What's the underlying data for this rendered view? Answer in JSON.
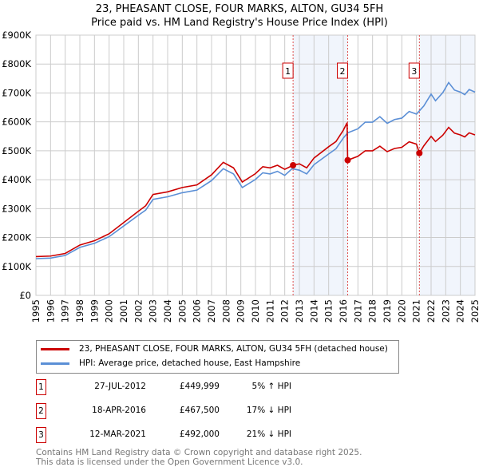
{
  "chart_data": {
    "type": "line",
    "title": "23, PHEASANT CLOSE, FOUR MARKS, ALTON, GU34 5FH",
    "subtitle": "Price paid vs. HM Land Registry's House Price Index (HPI)",
    "xlim": [
      1995,
      2025
    ],
    "ylim": [
      0,
      900000
    ],
    "x_ticks": [
      "1995",
      "1996",
      "1997",
      "1998",
      "1999",
      "2000",
      "2001",
      "2002",
      "2003",
      "2004",
      "2005",
      "2006",
      "2007",
      "2008",
      "2009",
      "2010",
      "2011",
      "2012",
      "2013",
      "2014",
      "2015",
      "2016",
      "2017",
      "2018",
      "2019",
      "2020",
      "2021",
      "2022",
      "2023",
      "2024",
      "2025"
    ],
    "y_ticks": [
      {
        "v": 0,
        "l": "£0"
      },
      {
        "v": 100000,
        "l": "£100K"
      },
      {
        "v": 200000,
        "l": "£200K"
      },
      {
        "v": 300000,
        "l": "£300K"
      },
      {
        "v": 400000,
        "l": "£400K"
      },
      {
        "v": 500000,
        "l": "£500K"
      },
      {
        "v": 600000,
        "l": "£600K"
      },
      {
        "v": 700000,
        "l": "£700K"
      },
      {
        "v": 800000,
        "l": "£800K"
      },
      {
        "v": 900000,
        "l": "£900K"
      }
    ],
    "grid": true,
    "series": [
      {
        "name": "23, PHEASANT CLOSE, FOUR MARKS, ALTON, GU34 5FH (detached house)",
        "color": "#cc0000",
        "points": [
          [
            1995,
            134
          ],
          [
            1996,
            136
          ],
          [
            1997,
            145
          ],
          [
            1998,
            174
          ],
          [
            1999,
            189
          ],
          [
            2000,
            213
          ],
          [
            2001,
            252
          ],
          [
            2002,
            291
          ],
          [
            2002.5,
            310
          ],
          [
            2003,
            349
          ],
          [
            2004,
            358
          ],
          [
            2005,
            373
          ],
          [
            2006,
            382
          ],
          [
            2007,
            417
          ],
          [
            2007.8,
            460
          ],
          [
            2008.5,
            441
          ],
          [
            2009.1,
            392
          ],
          [
            2010,
            421
          ],
          [
            2010.5,
            445
          ],
          [
            2011,
            441
          ],
          [
            2011.5,
            450
          ],
          [
            2012,
            436
          ],
          [
            2012.57,
            450
          ],
          [
            2013,
            455
          ],
          [
            2013.5,
            441
          ],
          [
            2014,
            475
          ],
          [
            2015,
            514
          ],
          [
            2015.5,
            532
          ],
          [
            2016,
            571
          ],
          [
            2016.26,
            597
          ],
          [
            2016.3,
            467.5
          ],
          [
            2017,
            481
          ],
          [
            2017.5,
            500
          ],
          [
            2018,
            500
          ],
          [
            2018.5,
            516
          ],
          [
            2019,
            497
          ],
          [
            2019.5,
            508
          ],
          [
            2020,
            512
          ],
          [
            2020.5,
            531
          ],
          [
            2021,
            523
          ],
          [
            2021.2,
            492
          ],
          [
            2021.5,
            517
          ],
          [
            2022,
            550
          ],
          [
            2022.3,
            532
          ],
          [
            2022.8,
            554
          ],
          [
            2023.2,
            581
          ],
          [
            2023.6,
            561
          ],
          [
            2024,
            555
          ],
          [
            2024.3,
            548
          ],
          [
            2024.6,
            562
          ],
          [
            2025,
            555
          ]
        ]
      },
      {
        "name": "HPI: Average price, detached house, East Hampshire",
        "color": "#5b8fd6",
        "points": [
          [
            1995,
            127
          ],
          [
            1996,
            129
          ],
          [
            1997,
            138
          ],
          [
            1998,
            166
          ],
          [
            1999,
            180
          ],
          [
            2000,
            203
          ],
          [
            2001,
            240
          ],
          [
            2002,
            277
          ],
          [
            2002.5,
            295
          ],
          [
            2003,
            332
          ],
          [
            2004,
            341
          ],
          [
            2005,
            355
          ],
          [
            2006,
            364
          ],
          [
            2007,
            397
          ],
          [
            2007.8,
            438
          ],
          [
            2008.5,
            420
          ],
          [
            2009.1,
            373
          ],
          [
            2010,
            401
          ],
          [
            2010.5,
            424
          ],
          [
            2011,
            420
          ],
          [
            2011.5,
            429
          ],
          [
            2012,
            415
          ],
          [
            2012.5,
            438
          ],
          [
            2013,
            433
          ],
          [
            2013.5,
            420
          ],
          [
            2014,
            452
          ],
          [
            2015,
            489
          ],
          [
            2015.5,
            507
          ],
          [
            2016,
            544
          ],
          [
            2016.3,
            562
          ],
          [
            2017,
            576
          ],
          [
            2017.5,
            599
          ],
          [
            2018,
            599
          ],
          [
            2018.5,
            618
          ],
          [
            2019,
            595
          ],
          [
            2019.5,
            608
          ],
          [
            2020,
            613
          ],
          [
            2020.5,
            636
          ],
          [
            2021,
            627
          ],
          [
            2021.5,
            655
          ],
          [
            2022,
            696
          ],
          [
            2022.3,
            673
          ],
          [
            2022.8,
            701
          ],
          [
            2023.2,
            736
          ],
          [
            2023.6,
            710
          ],
          [
            2024,
            703
          ],
          [
            2024.3,
            694
          ],
          [
            2024.6,
            712
          ],
          [
            2025,
            703
          ]
        ]
      }
    ],
    "sales": [
      {
        "n": "1",
        "x": 2012.57,
        "value": 449999,
        "date": "27-JUL-2012",
        "price": "£449,999",
        "hpi": "5% ↑ HPI"
      },
      {
        "n": "2",
        "x": 2016.3,
        "value": 467500,
        "date": "18-APR-2016",
        "price": "£467,500",
        "hpi": "17% ↓ HPI"
      },
      {
        "n": "3",
        "x": 2021.2,
        "value": 492000,
        "date": "12-MAR-2021",
        "price": "£492,000",
        "hpi": "21% ↓ HPI"
      }
    ],
    "shaded_ranges": [
      [
        2012.57,
        2016.3
      ],
      [
        2021.2,
        2025
      ]
    ],
    "legend_position": "below"
  },
  "footer": [
    "Contains HM Land Registry data © Crown copyright and database right 2025.",
    "This data is licensed under the Open Government Licence v3.0."
  ]
}
